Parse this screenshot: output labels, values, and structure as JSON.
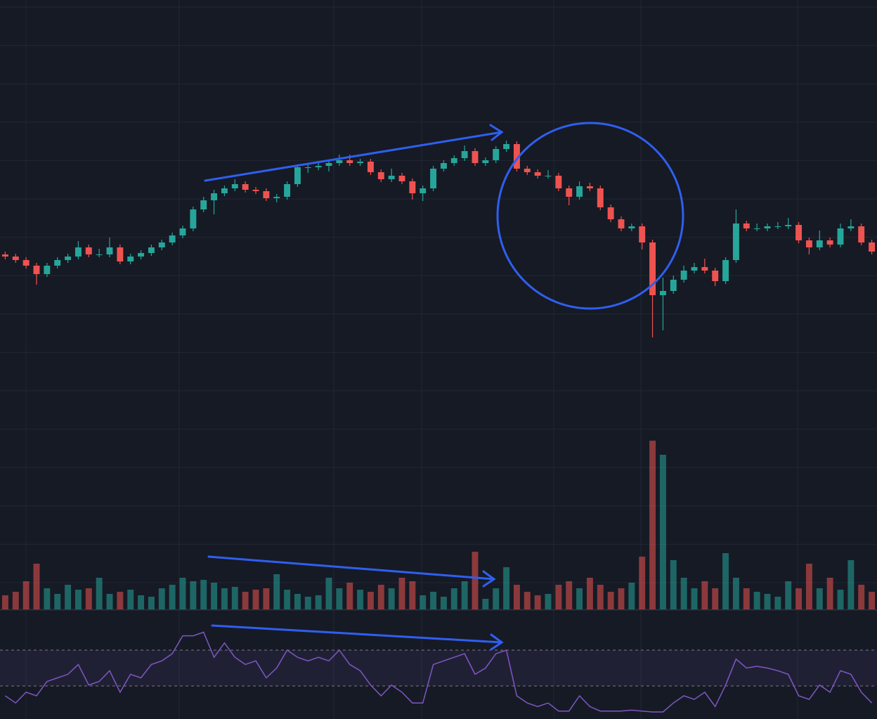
{
  "chart_data": {
    "type": "candlestick",
    "up_color": "#26a69a",
    "down_color": "#ef5350",
    "rsi_color": "#7e57c2",
    "grid": true,
    "ohlc": [
      [
        23.8,
        24.2,
        23.1,
        23.5
      ],
      [
        23.5,
        23.9,
        22.6,
        23.0
      ],
      [
        23.0,
        23.4,
        21.8,
        22.2
      ],
      [
        22.2,
        22.6,
        19.5,
        21.0
      ],
      [
        21.0,
        22.6,
        20.6,
        22.2
      ],
      [
        22.2,
        23.4,
        21.8,
        23.0
      ],
      [
        23.0,
        23.9,
        22.6,
        23.5
      ],
      [
        23.5,
        25.7,
        23.1,
        24.8
      ],
      [
        24.8,
        25.2,
        23.4,
        23.8
      ],
      [
        23.8,
        24.6,
        23.4,
        23.8
      ],
      [
        23.8,
        26.2,
        23.4,
        24.8
      ],
      [
        24.8,
        25.2,
        22.4,
        22.8
      ],
      [
        22.8,
        23.9,
        22.4,
        23.5
      ],
      [
        23.5,
        24.4,
        23.1,
        24.0
      ],
      [
        24.0,
        25.2,
        23.6,
        24.8
      ],
      [
        24.8,
        25.9,
        24.4,
        25.5
      ],
      [
        25.5,
        26.9,
        25.1,
        26.5
      ],
      [
        26.5,
        27.9,
        26.1,
        27.5
      ],
      [
        27.5,
        30.6,
        27.1,
        30.2
      ],
      [
        30.2,
        32.0,
        29.8,
        31.5
      ],
      [
        31.5,
        33.0,
        29.5,
        32.5
      ],
      [
        32.5,
        33.6,
        32.1,
        33.2
      ],
      [
        33.2,
        34.5,
        32.8,
        33.8
      ],
      [
        33.8,
        34.2,
        32.6,
        33.0
      ],
      [
        33.0,
        33.4,
        32.4,
        32.8
      ],
      [
        32.8,
        33.2,
        31.4,
        31.8
      ],
      [
        31.8,
        32.4,
        31.2,
        32.0
      ],
      [
        32.0,
        34.2,
        31.6,
        33.8
      ],
      [
        33.8,
        36.6,
        33.4,
        36.2
      ],
      [
        36.2,
        36.8,
        35.4,
        36.2
      ],
      [
        36.2,
        36.8,
        35.8,
        36.4
      ],
      [
        36.4,
        37.2,
        35.6,
        36.8
      ],
      [
        36.8,
        38.0,
        36.4,
        37.2
      ],
      [
        37.2,
        38.0,
        36.4,
        36.8
      ],
      [
        36.8,
        37.4,
        36.4,
        37.0
      ],
      [
        37.0,
        37.4,
        35.1,
        35.5
      ],
      [
        35.5,
        35.9,
        34.1,
        34.5
      ],
      [
        34.5,
        36.0,
        34.1,
        35.0
      ],
      [
        35.0,
        35.4,
        33.8,
        34.2
      ],
      [
        34.2,
        34.6,
        31.6,
        32.5
      ],
      [
        32.5,
        33.6,
        31.4,
        33.2
      ],
      [
        33.2,
        36.4,
        32.8,
        36.0
      ],
      [
        36.0,
        37.2,
        35.6,
        36.8
      ],
      [
        36.8,
        37.9,
        36.4,
        37.5
      ],
      [
        37.5,
        39.3,
        37.1,
        38.5
      ],
      [
        38.5,
        38.9,
        36.4,
        36.8
      ],
      [
        36.8,
        37.6,
        36.4,
        37.2
      ],
      [
        37.2,
        39.2,
        36.8,
        38.8
      ],
      [
        38.8,
        40.0,
        38.4,
        39.5
      ],
      [
        39.5,
        39.9,
        35.6,
        36.0
      ],
      [
        36.0,
        36.4,
        35.1,
        35.5
      ],
      [
        35.5,
        35.9,
        34.6,
        35.0
      ],
      [
        35.0,
        35.8,
        34.6,
        35.0
      ],
      [
        35.0,
        35.4,
        32.8,
        33.2
      ],
      [
        33.2,
        33.6,
        30.8,
        32.0
      ],
      [
        32.0,
        34.2,
        31.6,
        33.5
      ],
      [
        33.5,
        34.0,
        32.8,
        33.2
      ],
      [
        33.2,
        33.6,
        30.1,
        30.5
      ],
      [
        30.5,
        30.9,
        28.4,
        28.8
      ],
      [
        28.8,
        29.2,
        27.1,
        27.5
      ],
      [
        27.5,
        28.2,
        27.1,
        27.8
      ],
      [
        27.8,
        28.2,
        24.5,
        25.5
      ],
      [
        25.5,
        25.9,
        12.0,
        18.0
      ],
      [
        18.0,
        20.5,
        13.0,
        18.6
      ],
      [
        18.6,
        20.8,
        18.2,
        20.2
      ],
      [
        20.2,
        22.2,
        19.8,
        21.5
      ],
      [
        21.5,
        22.6,
        21.1,
        22.0
      ],
      [
        22.0,
        23.2,
        21.1,
        21.5
      ],
      [
        21.5,
        21.9,
        19.3,
        20.0
      ],
      [
        20.0,
        23.4,
        19.6,
        23.0
      ],
      [
        23.0,
        30.2,
        22.6,
        28.2
      ],
      [
        28.2,
        28.6,
        27.1,
        27.5
      ],
      [
        27.5,
        28.2,
        27.1,
        27.5
      ],
      [
        27.5,
        28.2,
        27.1,
        27.8
      ],
      [
        27.8,
        28.4,
        27.4,
        27.8
      ],
      [
        27.8,
        29.0,
        27.4,
        28.0
      ],
      [
        28.0,
        28.4,
        25.4,
        25.8
      ],
      [
        25.8,
        26.2,
        23.8,
        24.8
      ],
      [
        24.8,
        27.2,
        24.4,
        25.8
      ],
      [
        25.8,
        26.2,
        24.8,
        25.2
      ],
      [
        25.2,
        28.2,
        24.8,
        27.5
      ],
      [
        27.5,
        28.8,
        27.1,
        27.8
      ],
      [
        27.8,
        28.2,
        25.1,
        25.5
      ],
      [
        25.5,
        25.9,
        23.8,
        24.2
      ]
    ],
    "volume": [
      20,
      25,
      40,
      65,
      30,
      22,
      35,
      28,
      30,
      45,
      22,
      25,
      28,
      20,
      18,
      30,
      35,
      45,
      40,
      42,
      38,
      30,
      32,
      25,
      28,
      30,
      50,
      28,
      22,
      18,
      20,
      45,
      30,
      38,
      28,
      25,
      35,
      30,
      45,
      40,
      20,
      25,
      18,
      30,
      40,
      82,
      15,
      30,
      60,
      35,
      25,
      20,
      22,
      35,
      40,
      30,
      45,
      35,
      25,
      30,
      38,
      75,
      240,
      220,
      70,
      45,
      30,
      40,
      30,
      80,
      45,
      30,
      25,
      22,
      18,
      40,
      30,
      65,
      30,
      45,
      28,
      70,
      35,
      25
    ],
    "rsi": [
      19,
      11,
      23,
      19,
      35,
      39,
      43,
      54,
      31,
      35,
      47,
      23,
      43,
      39,
      54,
      58,
      66,
      86,
      86,
      90,
      62,
      78,
      62,
      54,
      58,
      39,
      50,
      70,
      62,
      58,
      62,
      58,
      70,
      54,
      47,
      31,
      19,
      31,
      23,
      11,
      11,
      54,
      58,
      62,
      66,
      43,
      50,
      66,
      70,
      19,
      11,
      7,
      11,
      2,
      2,
      19,
      7,
      2,
      2,
      2,
      3,
      2,
      1,
      1,
      11,
      19,
      15,
      23,
      7,
      31,
      60,
      50,
      52,
      50,
      47,
      43,
      19,
      15,
      31,
      23,
      47,
      43,
      23,
      11
    ],
    "rsi_levels": [
      70,
      30
    ]
  }
}
